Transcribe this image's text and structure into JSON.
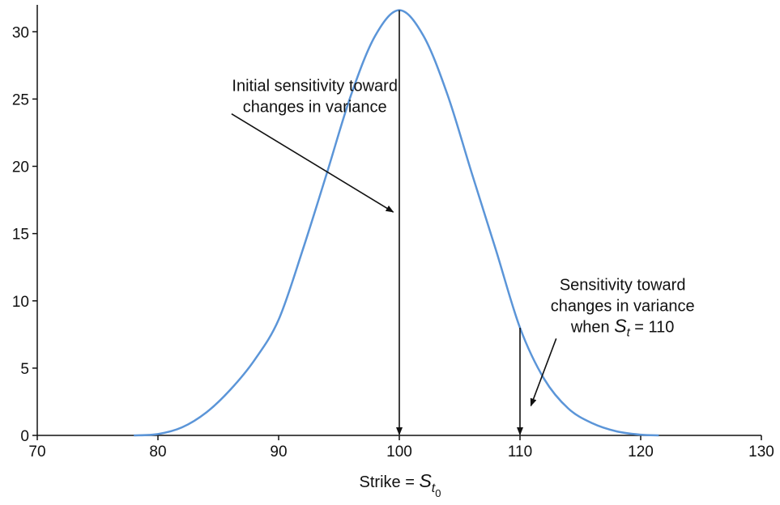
{
  "chart_data": {
    "type": "line",
    "title": "",
    "xlabel": "Strike = ",
    "xlabel_symbol": "S",
    "xlabel_sub": "t",
    "xlabel_subsub": "0",
    "ylabel": "",
    "xlim": [
      70,
      130
    ],
    "ylim": [
      0,
      32
    ],
    "x_ticks": [
      "70",
      "80",
      "90",
      "100",
      "110",
      "120",
      "130"
    ],
    "y_ticks": [
      "0",
      "5",
      "10",
      "15",
      "20",
      "25",
      "30"
    ],
    "grid": false,
    "series": [
      {
        "color": "#5b95d8",
        "x": [
          78,
          80,
          82,
          84,
          86,
          88,
          90,
          92,
          94,
          96,
          98,
          100,
          102,
          104,
          106,
          108,
          110,
          112,
          114,
          116,
          118,
          120,
          121.5
        ],
        "values": [
          0,
          0.1,
          0.6,
          1.7,
          3.4,
          5.6,
          8.6,
          13.8,
          19.5,
          25.3,
          29.7,
          31.6,
          29.7,
          25.3,
          19.5,
          13.8,
          8.0,
          4.2,
          2.0,
          0.9,
          0.3,
          0.05,
          0
        ]
      }
    ],
    "vlines": [
      {
        "x": 100,
        "y_top": 31.6
      },
      {
        "x": 110,
        "y_top": 8.0
      }
    ],
    "annotations": [
      {
        "lines": [
          "Initial sensitivity toward",
          "changes in variance"
        ],
        "align": "middle",
        "text_at": [
          93,
          25.6
        ],
        "arrow_from": [
          86.1,
          23.9
        ],
        "arrow_to": [
          99.5,
          16.6
        ]
      },
      {
        "line1": "Sensitivity toward",
        "line2": "changes in variance",
        "line3_prefix": "when ",
        "line3_symbol": "S",
        "line3_sub": "t",
        "line3_suffix": " = 110",
        "align": "middle",
        "text_at": [
          118.5,
          10.8
        ],
        "arrow_from": [
          113,
          7.2
        ],
        "arrow_to": [
          110.9,
          2.2
        ]
      }
    ]
  }
}
